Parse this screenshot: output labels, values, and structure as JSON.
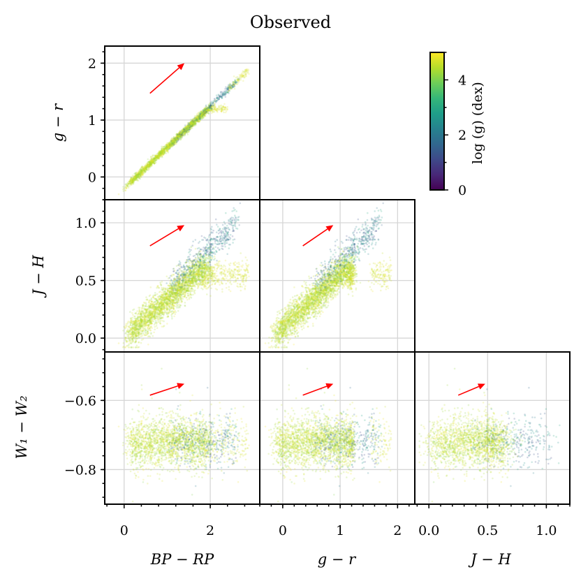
{
  "chart_data": {
    "type": "scatter",
    "title": "Observed",
    "colorbar": {
      "label": "log (g)  (dex)",
      "min": 0,
      "max": 5,
      "ticks": [
        "0",
        "2",
        "4"
      ],
      "tick_values": [
        0,
        2,
        4
      ],
      "colormap": "viridis",
      "stops": [
        "#440154",
        "#482878",
        "#3e4989",
        "#31688e",
        "#26828e",
        "#1f9e89",
        "#35b779",
        "#6ece58",
        "#b5de2b",
        "#fde725"
      ]
    },
    "variables": {
      "bprp": {
        "label": "BP − RP",
        "range": [
          -0.45,
          3.15
        ],
        "ticks": [
          0,
          2
        ],
        "tick_labels": [
          "0",
          "2"
        ]
      },
      "gr": {
        "label": "g − r",
        "range": [
          -0.4,
          2.3
        ],
        "ticks": [
          0,
          1,
          2
        ],
        "tick_labels": [
          "0",
          "1",
          "2"
        ]
      },
      "jh": {
        "label": "J − H",
        "range": [
          -0.12,
          1.2
        ],
        "ticks": [
          0.0,
          0.5,
          1.0
        ],
        "tick_labels": [
          "0.0",
          "0.5",
          "1.0"
        ]
      },
      "w": {
        "label": "W₁ − W₂",
        "range": [
          -0.9,
          -0.46
        ],
        "ticks": [
          -0.6,
          -0.8
        ],
        "tick_labels": [
          "−0.6",
          "−0.8"
        ]
      }
    },
    "y_axis_labels": [
      "g − r",
      "J − H",
      "W₁ − W₂"
    ],
    "x_axis_labels": [
      "BP − RP",
      "g − r",
      "J − H"
    ],
    "panels": [
      {
        "id": "gr-vs-bprp",
        "x": "bprp",
        "y": "gr",
        "arrow": {
          "from": [
            0.6,
            1.47
          ],
          "to": [
            1.4,
            2.0
          ]
        },
        "point_count": 2800
      },
      {
        "id": "jh-vs-bprp",
        "x": "bprp",
        "y": "jh",
        "arrow": {
          "from": [
            0.6,
            0.8
          ],
          "to": [
            1.4,
            0.98
          ]
        },
        "point_count": 3800
      },
      {
        "id": "jh-vs-gr",
        "x": "gr",
        "y": "jh",
        "arrow": {
          "from": [
            0.35,
            0.8
          ],
          "to": [
            0.88,
            0.98
          ]
        },
        "point_count": 3800
      },
      {
        "id": "w-vs-bprp",
        "x": "bprp",
        "y": "w",
        "arrow": {
          "from": [
            0.6,
            -0.585
          ],
          "to": [
            1.4,
            -0.552
          ]
        },
        "point_count": 2600
      },
      {
        "id": "w-vs-gr",
        "x": "gr",
        "y": "w",
        "arrow": {
          "from": [
            0.35,
            -0.585
          ],
          "to": [
            0.88,
            -0.552
          ]
        },
        "point_count": 2600
      },
      {
        "id": "w-vs-jh",
        "x": "jh",
        "y": "w",
        "arrow": {
          "from": [
            0.25,
            -0.585
          ],
          "to": [
            0.48,
            -0.552
          ]
        },
        "point_count": 2200
      }
    ]
  }
}
